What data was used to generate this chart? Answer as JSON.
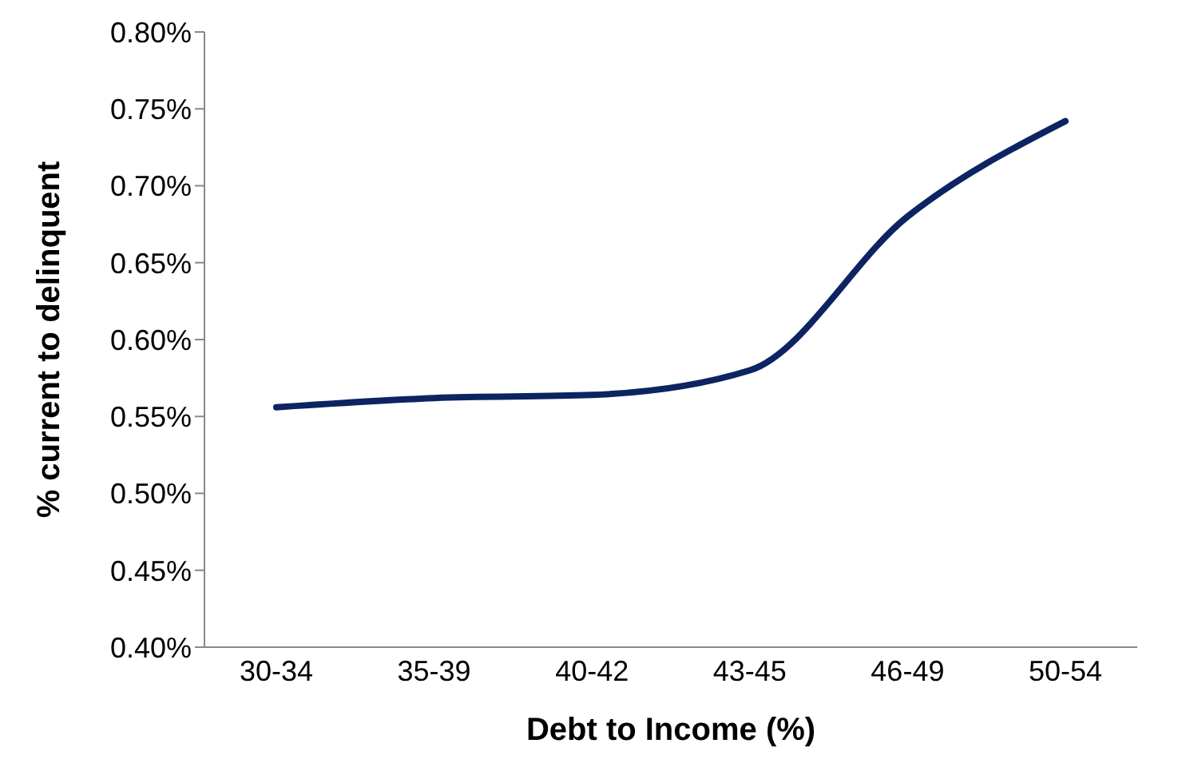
{
  "chart_data": {
    "type": "line",
    "xlabel": "Debt to Income (%)",
    "ylabel": "% current to delinquent",
    "categories": [
      "30-34",
      "35-39",
      "40-42",
      "43-45",
      "46-49",
      "50-54"
    ],
    "series": [
      {
        "color": "#0c2461",
        "values": [
          0.556,
          0.562,
          0.564,
          0.58,
          0.68,
          0.742
        ]
      }
    ],
    "ylim": [
      0.4,
      0.8
    ],
    "yticks": [
      {
        "value": 0.4,
        "label": "0.40%"
      },
      {
        "value": 0.45,
        "label": "0.45%"
      },
      {
        "value": 0.5,
        "label": "0.50%"
      },
      {
        "value": 0.55,
        "label": "0.55%"
      },
      {
        "value": 0.6,
        "label": "0.60%"
      },
      {
        "value": 0.65,
        "label": "0.65%"
      },
      {
        "value": 0.7,
        "label": "0.70%"
      },
      {
        "value": 0.75,
        "label": "0.75%"
      },
      {
        "value": 0.8,
        "label": "0.80%"
      }
    ],
    "grid": false,
    "legend": false,
    "marker": "none",
    "line_style": "solid"
  }
}
